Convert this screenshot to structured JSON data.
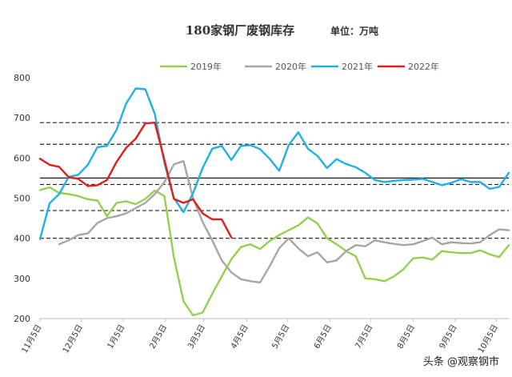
{
  "chart_data": {
    "type": "line",
    "title": "180家钢厂废钢库存",
    "unit_label": "单位：万吨",
    "ylim": [
      200,
      800
    ],
    "yticks": [
      200,
      300,
      400,
      500,
      600,
      700,
      800
    ],
    "xlim": [
      0,
      49
    ],
    "x_tick_labels": [
      {
        "label": "11月5日",
        "x": 0
      },
      {
        "label": "12月5日",
        "x": 4.3
      },
      {
        "label": "1月5日",
        "x": 8.7
      },
      {
        "label": "2月5日",
        "x": 13.1
      },
      {
        "label": "3月5日",
        "x": 17.1
      },
      {
        "label": "4月5日",
        "x": 21.6
      },
      {
        "label": "5月5日",
        "x": 25.9
      },
      {
        "label": "6月5日",
        "x": 30.3
      },
      {
        "label": "7月5日",
        "x": 34.6
      },
      {
        "label": "8月5日",
        "x": 39
      },
      {
        "label": "9月5日",
        "x": 43.4
      },
      {
        "label": "10月5日",
        "x": 47.7
      }
    ],
    "reference_lines": {
      "solid": [
        550
      ],
      "dashed": [
        688,
        634,
        534,
        469,
        400
      ]
    },
    "series": [
      {
        "name": "2019年",
        "color": "#92d050",
        "x": [
          0,
          1,
          2,
          3,
          4,
          5,
          6,
          7,
          8,
          9,
          10,
          11,
          12,
          13,
          14,
          15,
          16,
          17,
          18,
          19,
          20,
          21,
          22,
          23,
          24,
          25,
          26,
          27,
          28,
          29,
          30,
          31,
          32,
          33,
          34,
          35,
          36,
          37,
          38,
          39,
          40,
          41,
          42,
          43,
          44,
          45,
          46,
          47,
          48,
          49
        ],
        "y": [
          520,
          527,
          513,
          510,
          505,
          497,
          494,
          455,
          488,
          492,
          485,
          498,
          519,
          505,
          352,
          243,
          208,
          215,
          262,
          305,
          348,
          378,
          385,
          373,
          393,
          408,
          420,
          432,
          452,
          437,
          400,
          385,
          368,
          355,
          300,
          298,
          293,
          305,
          323,
          350,
          352,
          347,
          368,
          365,
          363,
          363,
          370,
          360,
          353,
          383
        ]
      },
      {
        "name": "2020年",
        "color": "#a6a6a6",
        "x": [
          2,
          3,
          4,
          5,
          6,
          7,
          8,
          9,
          10,
          11,
          12,
          13,
          14,
          15,
          16,
          17,
          18,
          19,
          20,
          21,
          22,
          23,
          24,
          25,
          26,
          27,
          28,
          29,
          30,
          31,
          32,
          33,
          34,
          35,
          36,
          37,
          38,
          39,
          40,
          41,
          42,
          43,
          44,
          45,
          46,
          47,
          48,
          49
        ],
        "y": [
          385,
          395,
          408,
          412,
          438,
          450,
          455,
          462,
          475,
          488,
          510,
          540,
          584,
          592,
          500,
          440,
          395,
          345,
          315,
          298,
          293,
          290,
          330,
          375,
          400,
          375,
          355,
          365,
          340,
          345,
          368,
          383,
          380,
          395,
          390,
          386,
          383,
          385,
          393,
          402,
          385,
          390,
          388,
          387,
          390,
          408,
          422,
          420
        ]
      },
      {
        "name": "2021年",
        "color": "#1fb0e8",
        "x": [
          0,
          1,
          2,
          3,
          4,
          5,
          6,
          7,
          8,
          9,
          10,
          11,
          12,
          13,
          14,
          15,
          16,
          17,
          18,
          19,
          20,
          21,
          22,
          23,
          24,
          25,
          26,
          27,
          28,
          29,
          30,
          31,
          32,
          33,
          34,
          35,
          36,
          37,
          38,
          39,
          40,
          41,
          42,
          43,
          44,
          45,
          46,
          47,
          48,
          49
        ],
        "y": [
          398,
          487,
          510,
          553,
          558,
          583,
          627,
          630,
          670,
          735,
          773,
          771,
          710,
          588,
          500,
          465,
          512,
          575,
          623,
          630,
          595,
          630,
          632,
          622,
          598,
          568,
          632,
          664,
          623,
          605,
          575,
          597,
          585,
          577,
          563,
          545,
          540,
          543,
          545,
          546,
          548,
          540,
          532,
          538,
          547,
          540,
          540,
          523,
          528,
          563
        ]
      },
      {
        "name": "2022年",
        "color": "#e31c1c",
        "x": [
          0,
          1,
          2,
          3,
          4,
          5,
          6,
          7,
          8,
          9,
          10,
          11,
          12,
          13,
          14,
          15,
          16,
          17,
          18,
          19,
          20
        ],
        "y": [
          598,
          583,
          578,
          552,
          548,
          530,
          532,
          545,
          590,
          625,
          648,
          686,
          688,
          595,
          498,
          488,
          497,
          462,
          447,
          447,
          402
        ]
      }
    ]
  },
  "watermark": "头条 @观察钢市"
}
